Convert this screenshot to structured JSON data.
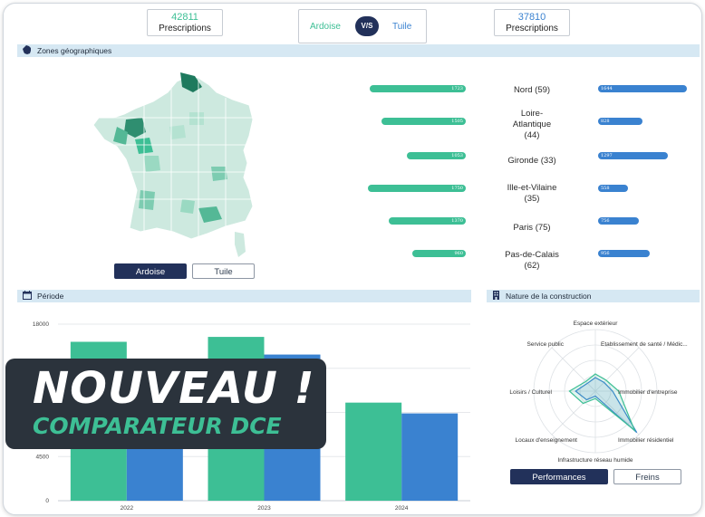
{
  "kpi": {
    "left": {
      "value": "42811",
      "label": "Prescriptions"
    },
    "right": {
      "value": "37810",
      "label": "Prescriptions"
    }
  },
  "compare": {
    "left": "Ardoise",
    "vs": "V/S",
    "right": "Tuile"
  },
  "colors": {
    "ardoise": "#3dbf95",
    "tuile": "#3a82d0",
    "navy": "#22315a",
    "band": "#d6e8f3"
  },
  "zones": {
    "title": "Zones géographiques",
    "rows": [
      {
        "label": "Nord (59)",
        "ardoise": 1723,
        "ardoise_label": "1723",
        "tuile": 1644,
        "tuile_label": "1644"
      },
      {
        "label": "Loire-Atlantique (44)",
        "ardoise": 1505,
        "ardoise_label": "1505",
        "tuile": 828,
        "tuile_label": "828"
      },
      {
        "label": "Gironde (33)",
        "ardoise": 1053,
        "ardoise_label": "1053",
        "tuile": 1297,
        "tuile_label": "1297"
      },
      {
        "label": "Ille-et-Vilaine (35)",
        "ardoise": 1750,
        "ardoise_label": "1750",
        "tuile": 558,
        "tuile_label": "558"
      },
      {
        "label": "Paris (75)",
        "ardoise": 1370,
        "ardoise_label": "1370",
        "tuile": 756,
        "tuile_label": "756"
      },
      {
        "label": "Pas-de-Calais (62)",
        "ardoise": 960,
        "ardoise_label": "960",
        "tuile": 956,
        "tuile_label": "956"
      }
    ],
    "map_buttons": {
      "ardoise": "Ardoise",
      "tuile": "Tuile"
    },
    "icons": {
      "band": "france-map-icon"
    }
  },
  "periode": {
    "title": "Période",
    "icon": "calendar-icon"
  },
  "chart_data": {
    "type": "bar",
    "categories": [
      "2022",
      "2023",
      "2024"
    ],
    "series": [
      {
        "values": [
          16200,
          16700,
          10000
        ]
      },
      {
        "values": [
          13500,
          14900,
          8900
        ]
      }
    ],
    "yticks": [
      0,
      4500,
      18000
    ],
    "ylim": [
      0,
      18000
    ],
    "grid": true
  },
  "construction": {
    "title": "Nature de la construction",
    "icon": "building-icon",
    "axes": [
      "Espace extérieur",
      "Etablissement de santé / Médic...",
      "Immobilier d'entreprise",
      "Immobilier résidentiel",
      "Infrastructure réseau humide",
      "Locaux d'enseignement",
      "Loisirs / Culturel",
      "Service public"
    ],
    "series_ardoise": [
      0.28,
      0.25,
      0.38,
      0.9,
      0.12,
      0.28,
      0.42,
      0.22
    ],
    "series_tuile": [
      0.22,
      0.2,
      0.28,
      0.95,
      0.08,
      0.2,
      0.32,
      0.18
    ],
    "buttons": {
      "performances": "Performances",
      "freins": "Freins"
    }
  },
  "promo": {
    "title": "NOUVEAU !",
    "subtitle": "COMPARATEUR DCE"
  }
}
